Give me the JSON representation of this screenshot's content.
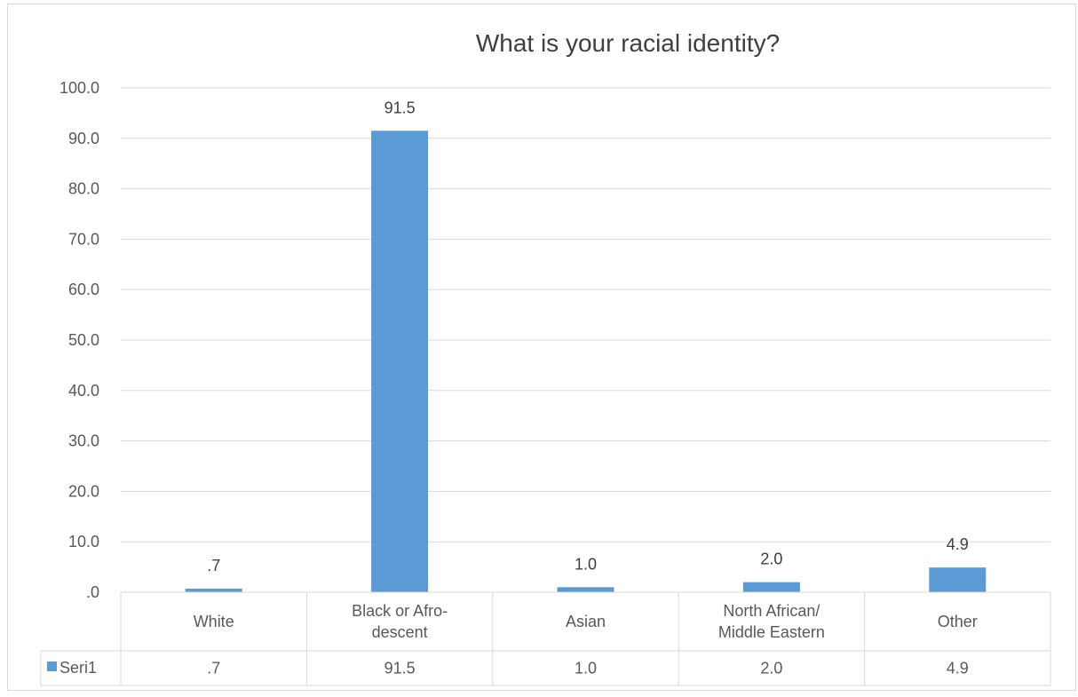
{
  "chart_data": {
    "type": "bar",
    "title": "What is your racial identity?",
    "categories": [
      [
        "White"
      ],
      [
        "Black or Afro-",
        "descent"
      ],
      [
        "Asian"
      ],
      [
        "North African/",
        "Middle Eastern"
      ],
      [
        "Other"
      ]
    ],
    "series": [
      {
        "name": "Seri1",
        "values": [
          0.7,
          91.5,
          1.0,
          2.0,
          4.9
        ],
        "value_labels": [
          ".7",
          "91.5",
          "1.0",
          "2.0",
          "4.9"
        ],
        "color": "#5b9bd5"
      }
    ],
    "yticks": [
      ".0",
      "10.0",
      "20.0",
      "30.0",
      "40.0",
      "50.0",
      "60.0",
      "70.0",
      "80.0",
      "90.0",
      "100.0"
    ],
    "ylim": [
      0,
      100
    ],
    "grid": true,
    "data_table": true,
    "legend_placement": "data-table"
  }
}
